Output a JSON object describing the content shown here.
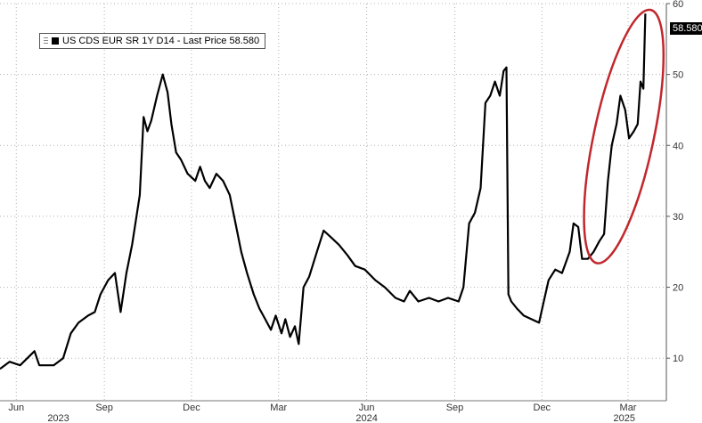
{
  "legend": {
    "label": "US CDS EUR SR 1Y D14 - Last Price 58.580"
  },
  "last_price_tag": "58.580",
  "colors": {
    "line": "#000000",
    "highlight": "#c0282d",
    "grid": "#b0b0b0"
  },
  "chart_data": {
    "type": "line",
    "title": "",
    "xlabel": "",
    "ylabel": "",
    "ylim": [
      4,
      60
    ],
    "yticks": [
      10,
      20,
      30,
      40,
      50,
      60
    ],
    "ytick_labels": [
      "10",
      "20",
      "30",
      "40",
      "50",
      "60"
    ],
    "grid": true,
    "legend_position": "top-left",
    "x_ticks": [
      {
        "date": "2023-06-01",
        "label": "Jun"
      },
      {
        "date": "2023-09-01",
        "label": "Sep"
      },
      {
        "date": "2023-12-01",
        "label": "Dec"
      },
      {
        "date": "2024-03-01",
        "label": "Mar"
      },
      {
        "date": "2024-06-01",
        "label": "Jun"
      },
      {
        "date": "2024-09-01",
        "label": "Sep"
      },
      {
        "date": "2024-12-01",
        "label": "Dec"
      },
      {
        "date": "2025-03-01",
        "label": "Mar"
      }
    ],
    "year_labels": [
      {
        "date": "2023-07-15",
        "label": "2023"
      },
      {
        "date": "2024-06-01",
        "label": "2024"
      },
      {
        "date": "2025-02-25",
        "label": "2025"
      }
    ],
    "series": [
      {
        "name": "US CDS EUR SR 1Y D14",
        "points": [
          [
            "2023-05-15",
            8.5
          ],
          [
            "2023-05-25",
            9.5
          ],
          [
            "2023-06-05",
            9.0
          ],
          [
            "2023-06-20",
            11.0
          ],
          [
            "2023-06-25",
            9.0
          ],
          [
            "2023-07-10",
            9.0
          ],
          [
            "2023-07-20",
            10.0
          ],
          [
            "2023-07-28",
            13.5
          ],
          [
            "2023-08-05",
            15.0
          ],
          [
            "2023-08-15",
            16.0
          ],
          [
            "2023-08-22",
            16.5
          ],
          [
            "2023-08-28",
            19.0
          ],
          [
            "2023-09-05",
            21.0
          ],
          [
            "2023-09-12",
            22.0
          ],
          [
            "2023-09-18",
            16.5
          ],
          [
            "2023-09-24",
            22.0
          ],
          [
            "2023-09-30",
            26.0
          ],
          [
            "2023-10-08",
            33.0
          ],
          [
            "2023-10-12",
            44.0
          ],
          [
            "2023-10-16",
            42.0
          ],
          [
            "2023-10-20",
            43.5
          ],
          [
            "2023-10-26",
            47.0
          ],
          [
            "2023-11-01",
            50.0
          ],
          [
            "2023-11-06",
            47.5
          ],
          [
            "2023-11-10",
            43.0
          ],
          [
            "2023-11-15",
            39.0
          ],
          [
            "2023-11-20",
            38.0
          ],
          [
            "2023-11-27",
            36.0
          ],
          [
            "2023-12-05",
            35.0
          ],
          [
            "2023-12-10",
            37.0
          ],
          [
            "2023-12-15",
            35.0
          ],
          [
            "2023-12-20",
            34.0
          ],
          [
            "2023-12-27",
            36.0
          ],
          [
            "2024-01-03",
            35.0
          ],
          [
            "2024-01-10",
            33.0
          ],
          [
            "2024-01-16",
            29.0
          ],
          [
            "2024-01-22",
            25.0
          ],
          [
            "2024-01-28",
            22.0
          ],
          [
            "2024-02-04",
            19.0
          ],
          [
            "2024-02-10",
            17.0
          ],
          [
            "2024-02-16",
            15.5
          ],
          [
            "2024-02-22",
            14.0
          ],
          [
            "2024-02-27",
            16.0
          ],
          [
            "2024-03-04",
            13.5
          ],
          [
            "2024-03-08",
            15.5
          ],
          [
            "2024-03-13",
            13.0
          ],
          [
            "2024-03-18",
            14.5
          ],
          [
            "2024-03-22",
            12.0
          ],
          [
            "2024-03-27",
            20.0
          ],
          [
            "2024-04-02",
            21.5
          ],
          [
            "2024-04-10",
            25.0
          ],
          [
            "2024-04-17",
            28.0
          ],
          [
            "2024-04-25",
            27.0
          ],
          [
            "2024-05-03",
            26.0
          ],
          [
            "2024-05-12",
            24.5
          ],
          [
            "2024-05-20",
            23.0
          ],
          [
            "2024-05-30",
            22.5
          ],
          [
            "2024-06-10",
            21.0
          ],
          [
            "2024-06-20",
            20.0
          ],
          [
            "2024-07-01",
            18.5
          ],
          [
            "2024-07-10",
            18.0
          ],
          [
            "2024-07-16",
            19.5
          ],
          [
            "2024-07-25",
            18.0
          ],
          [
            "2024-08-05",
            18.5
          ],
          [
            "2024-08-15",
            18.0
          ],
          [
            "2024-08-25",
            18.5
          ],
          [
            "2024-09-05",
            18.0
          ],
          [
            "2024-09-10",
            20.0
          ],
          [
            "2024-09-16",
            29.0
          ],
          [
            "2024-09-22",
            30.5
          ],
          [
            "2024-09-28",
            34.0
          ],
          [
            "2024-10-03",
            46.0
          ],
          [
            "2024-10-08",
            47.0
          ],
          [
            "2024-10-13",
            49.0
          ],
          [
            "2024-10-18",
            47.0
          ],
          [
            "2024-10-22",
            50.5
          ],
          [
            "2024-10-25",
            51.0
          ],
          [
            "2024-10-27",
            19.0
          ],
          [
            "2024-10-30",
            18.0
          ],
          [
            "2024-11-05",
            17.0
          ],
          [
            "2024-11-12",
            16.0
          ],
          [
            "2024-11-20",
            15.5
          ],
          [
            "2024-11-28",
            15.0
          ],
          [
            "2024-12-03",
            18.0
          ],
          [
            "2024-12-08",
            21.0
          ],
          [
            "2024-12-15",
            22.5
          ],
          [
            "2024-12-22",
            22.0
          ],
          [
            "2024-12-30",
            25.0
          ],
          [
            "2025-01-03",
            29.0
          ],
          [
            "2025-01-08",
            28.5
          ],
          [
            "2025-01-12",
            24.0
          ],
          [
            "2025-01-18",
            24.0
          ],
          [
            "2025-01-24",
            25.0
          ],
          [
            "2025-01-30",
            26.5
          ],
          [
            "2025-02-04",
            27.5
          ],
          [
            "2025-02-08",
            35.0
          ],
          [
            "2025-02-12",
            40.0
          ],
          [
            "2025-02-17",
            43.0
          ],
          [
            "2025-02-21",
            47.0
          ],
          [
            "2025-02-26",
            45.0
          ],
          [
            "2025-03-02",
            41.0
          ],
          [
            "2025-03-07",
            42.0
          ],
          [
            "2025-03-11",
            43.0
          ],
          [
            "2025-03-14",
            49.0
          ],
          [
            "2025-03-17",
            48.0
          ],
          [
            "2025-03-19",
            58.58
          ]
        ]
      }
    ]
  }
}
